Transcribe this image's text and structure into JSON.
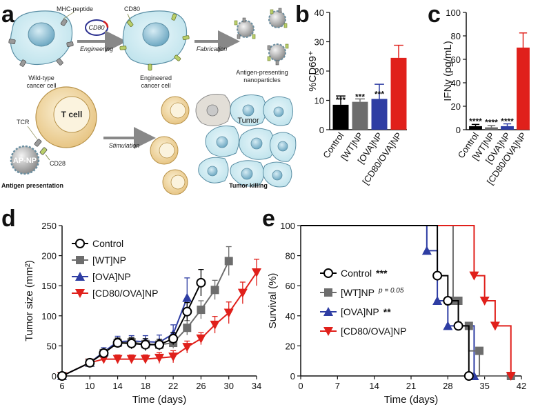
{
  "panel_labels": {
    "a": "a",
    "b": "b",
    "c": "c",
    "d": "d",
    "e": "e"
  },
  "schematic": {
    "top": {
      "mhc_peptide": "MHC-peptide",
      "cd80_plasmid": "CD80",
      "cd80_label": "CD80",
      "engineering": "Engineering",
      "fabrication": "Fabrication",
      "wild_type": [
        "Wild-type",
        "cancer cell"
      ],
      "engineered": [
        "Engineered",
        "cancer cell"
      ],
      "nanoparticles": [
        "Antigen-presenting",
        "nanoparticles"
      ]
    },
    "bottom": {
      "tcr": "TCR",
      "t_cell": "T cell",
      "ap_np": "AP-NP",
      "cd28": "CD28",
      "stimulation": "Stimulation",
      "tumor": "Tumor",
      "antigen_presentation": "Antigen presentation",
      "tumor_killing": "Tumor killing"
    }
  },
  "colors": {
    "control": "#000000",
    "wt": "#6d6d6d",
    "ova": "#2e3da3",
    "cd80": "#e0201b"
  },
  "chart_data": [
    {
      "id": "b",
      "type": "bar",
      "ylabel": "%CD69⁺",
      "ylim": [
        0,
        40
      ],
      "yticks": [
        0,
        10,
        20,
        30,
        40
      ],
      "categories": [
        "Control",
        "[WT]NP",
        "[OVA]NP",
        "[CD80/OVA]NP"
      ],
      "values": [
        8.5,
        9.5,
        10.5,
        24.5
      ],
      "errors": [
        3,
        1,
        5,
        4.3
      ],
      "annotations": [
        "***",
        "***",
        "***",
        ""
      ]
    },
    {
      "id": "c",
      "type": "bar",
      "ylabel": "IFNγ (pg/mL)",
      "ylim": [
        0,
        100
      ],
      "yticks": [
        0,
        20,
        40,
        60,
        80,
        100
      ],
      "categories": [
        "Control",
        "[WT]NP",
        "[OVA]NP",
        "[CD80/OVA]NP"
      ],
      "values": [
        3,
        2,
        3,
        70
      ],
      "errors": [
        1.5,
        1.5,
        2,
        12.5
      ],
      "annotations": [
        "****",
        "****",
        "****",
        ""
      ]
    },
    {
      "id": "d",
      "type": "line",
      "xlabel": "Time (days)",
      "ylabel": "Tumor size (mm²)",
      "xlim": [
        6,
        34
      ],
      "ylim": [
        0,
        250
      ],
      "xticks": [
        6,
        10,
        14,
        18,
        22,
        26,
        30,
        34
      ],
      "yticks": [
        0,
        50,
        100,
        150,
        200,
        250
      ],
      "series": [
        {
          "name": "Control",
          "x": [
            6,
            10,
            12,
            14,
            16,
            18,
            20,
            22,
            24,
            26
          ],
          "y": [
            0,
            22,
            38,
            55,
            54,
            52,
            52,
            62,
            107,
            155
          ],
          "err": [
            0,
            3,
            6,
            8,
            9,
            10,
            9,
            10,
            15,
            22
          ]
        },
        {
          "name": "[WT]NP",
          "x": [
            6,
            10,
            12,
            14,
            16,
            18,
            20,
            22,
            24,
            26,
            28,
            30
          ],
          "y": [
            0,
            22,
            38,
            55,
            56,
            53,
            52,
            55,
            80,
            110,
            143,
            191
          ],
          "err": [
            0,
            3,
            6,
            8,
            8,
            9,
            9,
            9,
            12,
            15,
            16,
            24
          ]
        },
        {
          "name": "[OVA]NP",
          "x": [
            6,
            10,
            12,
            14,
            16,
            18,
            20,
            22,
            24
          ],
          "y": [
            0,
            22,
            40,
            57,
            58,
            57,
            56,
            70,
            130
          ],
          "err": [
            0,
            3,
            7,
            9,
            9,
            10,
            12,
            15,
            33
          ]
        },
        {
          "name": "[CD80/OVA]NP",
          "x": [
            6,
            10,
            12,
            14,
            16,
            18,
            20,
            22,
            24,
            26,
            28,
            30,
            32,
            34
          ],
          "y": [
            0,
            22,
            28,
            28,
            28,
            28,
            30,
            32,
            48,
            62,
            85,
            105,
            138,
            172
          ],
          "err": [
            0,
            3,
            6,
            7,
            7,
            7,
            9,
            10,
            10,
            10,
            14,
            18,
            18,
            22
          ]
        }
      ]
    },
    {
      "id": "e",
      "type": "line",
      "subtype": "step",
      "xlabel": "Time (days)",
      "ylabel": "Survival (%)",
      "xlim": [
        0,
        42
      ],
      "ylim": [
        0,
        100
      ],
      "xticks": [
        0,
        7,
        14,
        21,
        28,
        35,
        42
      ],
      "yticks": [
        0,
        20,
        40,
        60,
        80,
        100
      ],
      "series": [
        {
          "name": "Control",
          "significance": "***",
          "x": [
            0,
            26,
            26,
            28,
            28,
            30,
            30,
            32,
            32
          ],
          "y": [
            100,
            100,
            66.7,
            66.7,
            50,
            50,
            33.3,
            33.3,
            0
          ],
          "marker_x": [
            26,
            28,
            30,
            32
          ],
          "marker_y": [
            66.7,
            50,
            33.3,
            0
          ]
        },
        {
          "name": "[WT]NP",
          "significance": "p = 0.05",
          "x": [
            0,
            29,
            29,
            30,
            30,
            32,
            32,
            34,
            34,
            40,
            40
          ],
          "y": [
            100,
            100,
            50,
            50,
            33.3,
            33.3,
            16.7,
            16.7,
            0,
            0,
            0
          ],
          "marker_x": [
            29,
            30,
            32,
            34,
            40
          ],
          "marker_y": [
            50,
            50,
            33.3,
            16.7,
            0
          ]
        },
        {
          "name": "[OVA]NP",
          "significance": "**",
          "x": [
            0,
            24,
            24,
            26,
            26,
            28,
            28,
            33,
            33
          ],
          "y": [
            100,
            100,
            83.3,
            83.3,
            50,
            50,
            33.3,
            33.3,
            0
          ],
          "marker_x": [
            24,
            26,
            28,
            33
          ],
          "marker_y": [
            83.3,
            50,
            33.3,
            0
          ]
        },
        {
          "name": "[CD80/OVA]NP",
          "significance": "",
          "x": [
            0,
            33,
            33,
            35,
            35,
            37,
            37,
            40,
            40
          ],
          "y": [
            100,
            100,
            66.7,
            66.7,
            50,
            50,
            33.3,
            33.3,
            0
          ],
          "marker_x": [
            33,
            35,
            37,
            40
          ],
          "marker_y": [
            66.7,
            50,
            33.3,
            0
          ]
        }
      ]
    }
  ]
}
